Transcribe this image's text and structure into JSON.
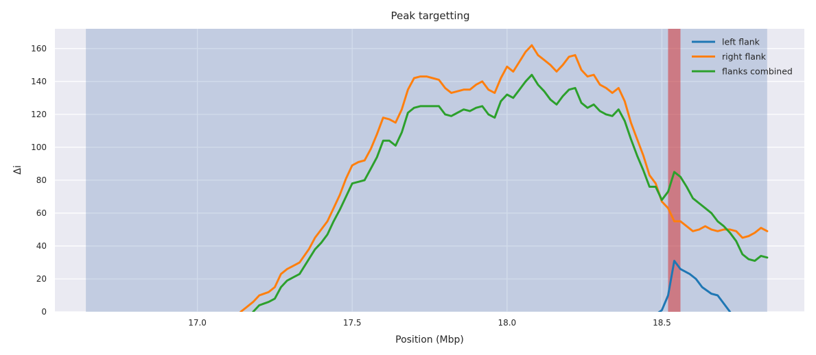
{
  "chart_data": {
    "type": "line",
    "title": "Peak targetting",
    "xlabel": "Position (Mbp)",
    "ylabel": "Δi",
    "xlim": [
      16.54,
      18.96
    ],
    "ylim": [
      0,
      172
    ],
    "xticks": [
      17.0,
      17.5,
      18.0,
      18.5
    ],
    "xtick_labels": [
      "17.0",
      "17.5",
      "18.0",
      "18.5"
    ],
    "yticks": [
      0,
      20,
      40,
      60,
      80,
      100,
      120,
      140,
      160
    ],
    "ytick_labels": [
      "0",
      "20",
      "40",
      "60",
      "80",
      "100",
      "120",
      "140",
      "160"
    ],
    "grid": true,
    "legend_position": "top-right",
    "shaded_regions": [
      {
        "x0": 16.64,
        "x1": 18.84,
        "color": "#4c72b0",
        "opacity": 0.25
      },
      {
        "x0": 18.52,
        "x1": 18.56,
        "color": "#d62728",
        "opacity": 0.5
      }
    ],
    "series": [
      {
        "name": "left flank",
        "color": "#1f77b4",
        "x": [
          18.47,
          18.5,
          18.52,
          18.54,
          18.56,
          18.59,
          18.61,
          18.63,
          18.66,
          18.68,
          18.7,
          18.72
        ],
        "y": [
          -3,
          1,
          10,
          31,
          26,
          23,
          20,
          15,
          11,
          10,
          5,
          0
        ]
      },
      {
        "name": "right flank",
        "color": "#ff7f0e",
        "x": [
          17.14,
          17.16,
          17.18,
          17.2,
          17.23,
          17.25,
          17.27,
          17.29,
          17.31,
          17.33,
          17.36,
          17.38,
          17.4,
          17.42,
          17.44,
          17.46,
          17.48,
          17.5,
          17.52,
          17.54,
          17.56,
          17.58,
          17.6,
          17.62,
          17.64,
          17.66,
          17.68,
          17.7,
          17.72,
          17.74,
          17.76,
          17.78,
          17.8,
          17.82,
          17.84,
          17.86,
          17.88,
          17.9,
          17.92,
          17.94,
          17.96,
          17.98,
          18.0,
          18.02,
          18.04,
          18.06,
          18.08,
          18.1,
          18.12,
          18.14,
          18.16,
          18.18,
          18.2,
          18.22,
          18.24,
          18.26,
          18.28,
          18.3,
          18.32,
          18.34,
          18.36,
          18.38,
          18.4,
          18.42,
          18.44,
          18.46,
          18.48,
          18.5,
          18.52,
          18.54,
          18.56,
          18.58,
          18.6,
          18.62,
          18.64,
          18.66,
          18.68,
          18.7,
          18.72,
          18.74,
          18.76,
          18.78,
          18.8,
          18.82,
          18.84
        ],
        "y": [
          0,
          3,
          6,
          10,
          12,
          15,
          23,
          26,
          28,
          30,
          38,
          45,
          50,
          55,
          63,
          71,
          81,
          89,
          91,
          92,
          99,
          108,
          118,
          117,
          115,
          123,
          135,
          142,
          143,
          143,
          142,
          141,
          136,
          133,
          134,
          135,
          135,
          138,
          140,
          135,
          133,
          142,
          149,
          146,
          152,
          158,
          162,
          156,
          153,
          150,
          146,
          150,
          155,
          156,
          147,
          143,
          144,
          138,
          136,
          133,
          136,
          128,
          115,
          105,
          95,
          83,
          78,
          67,
          63,
          55,
          55,
          52,
          49,
          50,
          52,
          50,
          49,
          50,
          50,
          49,
          45,
          46,
          48,
          51,
          49
        ]
      },
      {
        "name": "flanks combined",
        "color": "#2ca02c",
        "x": [
          17.18,
          17.2,
          17.23,
          17.25,
          17.27,
          17.29,
          17.31,
          17.33,
          17.36,
          17.38,
          17.4,
          17.42,
          17.44,
          17.46,
          17.48,
          17.5,
          17.52,
          17.54,
          17.56,
          17.58,
          17.6,
          17.62,
          17.64,
          17.66,
          17.68,
          17.7,
          17.72,
          17.74,
          17.76,
          17.78,
          17.8,
          17.82,
          17.84,
          17.86,
          17.88,
          17.9,
          17.92,
          17.94,
          17.96,
          17.98,
          18.0,
          18.02,
          18.04,
          18.06,
          18.08,
          18.1,
          18.12,
          18.14,
          18.16,
          18.18,
          18.2,
          18.22,
          18.24,
          18.26,
          18.28,
          18.3,
          18.32,
          18.34,
          18.36,
          18.38,
          18.4,
          18.42,
          18.44,
          18.46,
          18.48,
          18.5,
          18.52,
          18.54,
          18.56,
          18.58,
          18.6,
          18.62,
          18.64,
          18.66,
          18.68,
          18.7,
          18.72,
          18.74,
          18.76,
          18.78,
          18.8,
          18.82,
          18.84
        ],
        "y": [
          0,
          4,
          6,
          8,
          15,
          19,
          21,
          23,
          32,
          38,
          42,
          47,
          55,
          62,
          70,
          78,
          79,
          80,
          87,
          94,
          104,
          104,
          101,
          109,
          121,
          124,
          125,
          125,
          125,
          125,
          120,
          119,
          121,
          123,
          122,
          124,
          125,
          120,
          118,
          128,
          132,
          130,
          135,
          140,
          144,
          138,
          134,
          129,
          126,
          131,
          135,
          136,
          127,
          124,
          126,
          122,
          120,
          119,
          123,
          116,
          105,
          95,
          86,
          76,
          76,
          68,
          73,
          85,
          82,
          76,
          69,
          66,
          63,
          60,
          55,
          52,
          48,
          43,
          35,
          32,
          31,
          34,
          33
        ]
      }
    ]
  }
}
